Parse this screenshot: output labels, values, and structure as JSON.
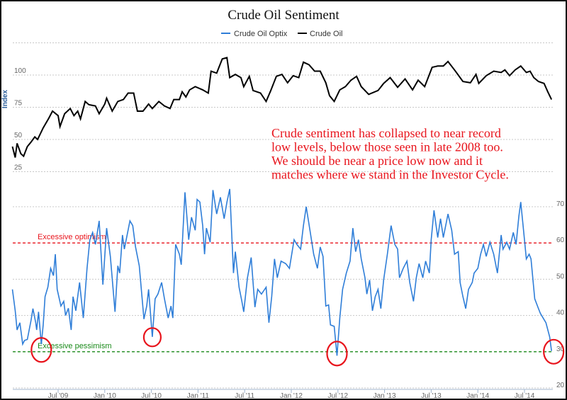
{
  "chart_data": [
    {
      "type": "line",
      "title": "Crude Oil Sentiment",
      "legend": [
        "Crude Oil Optix",
        "Crude Oil"
      ],
      "legend_position": "top-center",
      "colors": {
        "optix": "#2f7ed8",
        "crude": "#000000",
        "optimism": "#e8141c",
        "pessimism": "#1a8a1a",
        "annotation": "#e8141c"
      },
      "upper_panel": {
        "ylabel": "Index",
        "yticks": [
          "100",
          "75",
          "50",
          "25"
        ],
        "ylim": [
          25,
          125
        ],
        "series": [
          {
            "name": "Crude Oil",
            "x": [
              2009.01,
              2009.04,
              2009.06,
              2009.1,
              2009.13,
              2009.17,
              2009.21,
              2009.25,
              2009.28,
              2009.34,
              2009.4,
              2009.44,
              2009.5,
              2009.52,
              2009.57,
              2009.63,
              2009.67,
              2009.71,
              2009.74,
              2009.79,
              2009.83,
              2009.9,
              2009.94,
              2010.0,
              2010.02,
              2010.08,
              2010.14,
              2010.2,
              2010.25,
              2010.31,
              2010.35,
              2010.41,
              2010.47,
              2010.51,
              2010.58,
              2010.64,
              2010.7,
              2010.74,
              2010.8,
              2010.83,
              2010.87,
              2010.91,
              2010.97,
              2011.05,
              2011.11,
              2011.14,
              2011.2,
              2011.26,
              2011.31,
              2011.34,
              2011.4,
              2011.46,
              2011.49,
              2011.55,
              2011.59,
              2011.67,
              2011.73,
              2011.78,
              2011.84,
              2011.9,
              2011.96,
              2012.02,
              2012.08,
              2012.13,
              2012.19,
              2012.25,
              2012.31,
              2012.37,
              2012.41,
              2012.46,
              2012.52,
              2012.58,
              2012.64,
              2012.7,
              2012.75,
              2012.83,
              2012.93,
              2012.99,
              2013.06,
              2013.14,
              2013.22,
              2013.3,
              2013.36,
              2013.43,
              2013.51,
              2013.57,
              2013.63,
              2013.68,
              2013.76,
              2013.84,
              2013.92,
              2013.98,
              2014.01,
              2014.09,
              2014.17,
              2014.25,
              2014.29,
              2014.34,
              2014.4,
              2014.46,
              2014.52,
              2014.56,
              2014.6,
              2014.65,
              2014.71,
              2014.75,
              2014.79
            ],
            "values": [
              44.5,
              36,
              47,
              39,
              37,
              44.5,
              48,
              52,
              50,
              59,
              66.5,
              72,
              68.5,
              60,
              70,
              74,
              68.5,
              72,
              66,
              79.5,
              77,
              76,
              70,
              77.5,
              82,
              72,
              79.5,
              81,
              86,
              86,
              72,
              72,
              77.5,
              74,
              79.5,
              76,
              74,
              81,
              81,
              87,
              83,
              88.5,
              91,
              88.5,
              86,
              103,
              101.5,
              112.5,
              113.5,
              98,
              100.5,
              98,
              91,
              99,
              88,
              86,
              79.5,
              88,
              99,
              100.5,
              94,
              99.5,
              98,
              110,
              108,
              103,
              103,
              94,
              84,
              79.5,
              88.5,
              91,
              96,
              99,
              91,
              85,
              88,
              93.5,
              98,
              90.5,
              97,
              88.5,
              96,
              91,
              106,
              107,
              107,
              110.5,
              103,
              95,
              94,
              100.5,
              93.5,
              99.5,
              103,
              102,
              104,
              99.5,
              104,
              107,
              102,
              103,
              98,
              95,
              93.5,
              87,
              81
            ]
          }
        ]
      },
      "lower_panel": {
        "yticks": [
          "70",
          "60",
          "50",
          "40",
          "30",
          "20"
        ],
        "ylim": [
          20,
          75
        ],
        "reference_lines": [
          {
            "label": "Excessive optimism",
            "value": 60
          },
          {
            "label": "Excessive pessimism",
            "value": 30
          }
        ],
        "series": [
          {
            "name": "Crude Oil Optix",
            "x": [
              2009.01,
              2009.04,
              2009.06,
              2009.09,
              2009.12,
              2009.14,
              2009.17,
              2009.21,
              2009.23,
              2009.26,
              2009.27,
              2009.29,
              2009.32,
              2009.34,
              2009.36,
              2009.39,
              2009.42,
              2009.45,
              2009.47,
              2009.49,
              2009.53,
              2009.56,
              2009.58,
              2009.61,
              2009.64,
              2009.66,
              2009.69,
              2009.73,
              2009.77,
              2009.81,
              2009.84,
              2009.87,
              2009.9,
              2009.94,
              2009.98,
              2010.02,
              2010.06,
              2010.11,
              2010.14,
              2010.16,
              2010.19,
              2010.21,
              2010.27,
              2010.3,
              2010.33,
              2010.37,
              2010.42,
              2010.45,
              2010.47,
              2010.51,
              2010.54,
              2010.57,
              2010.61,
              2010.64,
              2010.68,
              2010.71,
              2010.73,
              2010.76,
              2010.8,
              2010.82,
              2010.86,
              2010.9,
              2010.93,
              2010.97,
              2010.99,
              2011.02,
              2011.05,
              2011.07,
              2011.09,
              2011.13,
              2011.16,
              2011.2,
              2011.24,
              2011.28,
              2011.31,
              2011.34,
              2011.38,
              2011.4,
              2011.44,
              2011.47,
              2011.49,
              2011.53,
              2011.57,
              2011.61,
              2011.64,
              2011.68,
              2011.73,
              2011.76,
              2011.79,
              2011.82,
              2011.85,
              2011.89,
              2011.94,
              2011.98,
              2012.03,
              2012.06,
              2012.1,
              2012.13,
              2012.16,
              2012.2,
              2012.24,
              2012.28,
              2012.31,
              2012.34,
              2012.37,
              2012.4,
              2012.42,
              2012.46,
              2012.49,
              2012.52,
              2012.55,
              2012.59,
              2012.63,
              2012.66,
              2012.69,
              2012.72,
              2012.75,
              2012.79,
              2012.81,
              2012.84,
              2012.87,
              2012.9,
              2012.93,
              2012.96,
              2012.99,
              2013.03,
              2013.07,
              2013.11,
              2013.14,
              2013.16,
              2013.2,
              2013.24,
              2013.27,
              2013.31,
              2013.34,
              2013.37,
              2013.41,
              2013.44,
              2013.48,
              2013.5,
              2013.53,
              2013.57,
              2013.6,
              2013.63,
              2013.68,
              2013.72,
              2013.75,
              2013.79,
              2013.81,
              2013.84,
              2013.87,
              2013.9,
              2013.94,
              2013.96,
              2014.0,
              2014.03,
              2014.06,
              2014.09,
              2014.13,
              2014.17,
              2014.21,
              2014.25,
              2014.27,
              2014.31,
              2014.34,
              2014.38,
              2014.41,
              2014.44,
              2014.46,
              2014.49,
              2014.52,
              2014.55,
              2014.57,
              2014.61,
              2014.65,
              2014.67,
              2014.7,
              2014.73,
              2014.77,
              2014.79
            ],
            "values": [
              47.2,
              41.3,
              36,
              38,
              32.1,
              33.1,
              33.4,
              38.7,
              41.9,
              38,
              36,
              41,
              32.1,
              37.4,
              45.2,
              47.8,
              53,
              51,
              56.9,
              47.2,
              42.6,
              43.9,
              40,
              42,
              36,
              45.2,
              41.3,
              49.1,
              39.3,
              53,
              60.9,
              62.9,
              59.6,
              66.1,
              48.5,
              64.1,
              56.3,
              41,
              53.7,
              51.7,
              62.2,
              58.3,
              66.1,
              64.8,
              58.9,
              53.7,
              39,
              42.6,
              47.2,
              34.1,
              44.6,
              45.9,
              49.1,
              44.6,
              39.3,
              42.6,
              39.3,
              59.6,
              56.9,
              54,
              74,
              60.9,
              67.1,
              63.5,
              72,
              71.3,
              64.8,
              56.9,
              64.1,
              60.2,
              74.6,
              68,
              72.6,
              66.7,
              71.3,
              74.9,
              51.7,
              57.6,
              47.8,
              43.9,
              41,
              50.4,
              56,
              42.3,
              47.2,
              45.9,
              47.8,
              38,
              45.2,
              55.6,
              50.4,
              55,
              54.3,
              53,
              60.9,
              59.6,
              58.3,
              64.8,
              70,
              63.5,
              56.9,
              53,
              58.9,
              56.3,
              42.6,
              42.9,
              37.4,
              37,
              28.9,
              39.3,
              47.2,
              51.7,
              55,
              64.1,
              57.6,
              60.9,
              55.6,
              50.4,
              45.9,
              49.8,
              41.3,
              45.2,
              47.2,
              41.9,
              49.8,
              56.9,
              64.8,
              59.6,
              58.3,
              50.4,
              53,
              55,
              49.1,
              43.9,
              50.4,
              54.3,
              50.4,
              55,
              51.7,
              60.9,
              69,
              61.5,
              66.7,
              61.5,
              68,
              63.5,
              56.9,
              57.6,
              49.1,
              45.2,
              41.9,
              47.2,
              49.1,
              51.7,
              53,
              56.9,
              59.6,
              56.3,
              60.2,
              56.9,
              51.7,
              62.2,
              58.3,
              60.2,
              58.3,
              62.9,
              59.6,
              67.4,
              71.3,
              63.5,
              55.6,
              56.9,
              55.6,
              44.6,
              41.9,
              40.6,
              39.3,
              38,
              34.1,
              30.2
            ]
          }
        ]
      },
      "xticks": [
        {
          "label": "Jul '09",
          "value": 2009.5
        },
        {
          "label": "Jan '10",
          "value": 2010.0
        },
        {
          "label": "Jul '10",
          "value": 2010.5
        },
        {
          "label": "Jan '11",
          "value": 2011.0
        },
        {
          "label": "Jul '11",
          "value": 2011.5
        },
        {
          "label": "Jan '12",
          "value": 2012.0
        },
        {
          "label": "Jul '12",
          "value": 2012.5
        },
        {
          "label": "Jan '13",
          "value": 2013.0
        },
        {
          "label": "Jul '13",
          "value": 2013.5
        },
        {
          "label": "Jan '14",
          "value": 2014.0
        },
        {
          "label": "Jul '14",
          "value": 2014.5
        }
      ],
      "annotation": [
        "Crude sentiment has collapsed to near record",
        "low levels, below those seen in late 2008 too.",
        "We should be near a price low now and it",
        "matches where we stand in the Investor Cycle."
      ],
      "highlighted_lows": [
        2009.32,
        2010.51,
        2012.49,
        2014.79
      ]
    }
  ]
}
